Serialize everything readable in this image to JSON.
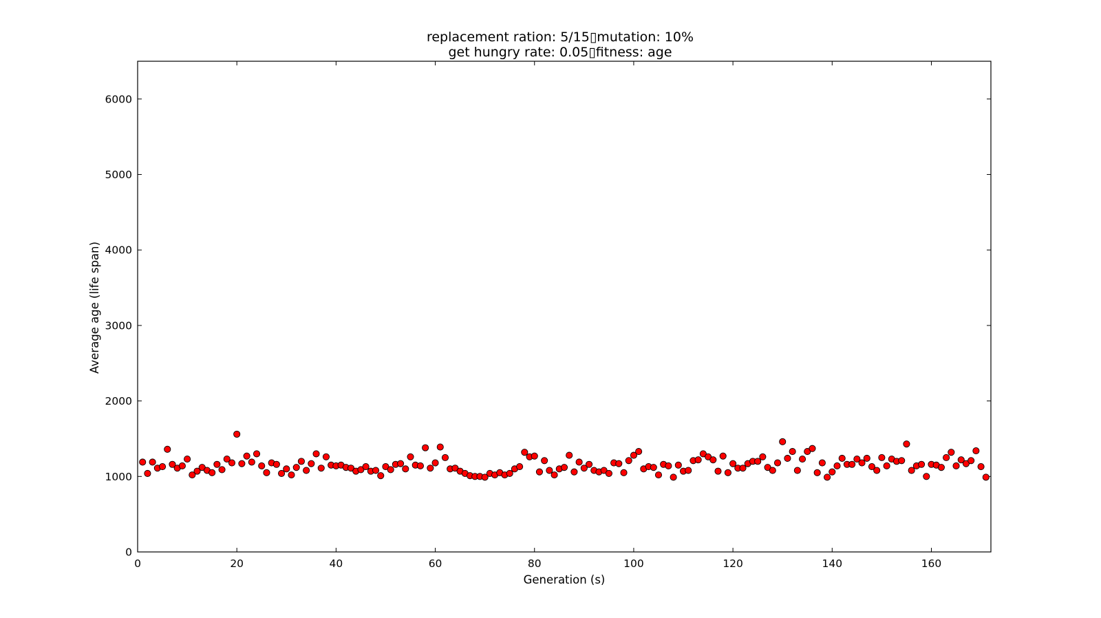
{
  "chart_data": {
    "type": "scatter",
    "title": "replacement ration: 5/15▯mutation: 10%",
    "subtitle": "get hungry rate: 0.05▯fitness: age",
    "xlabel": "Generation (s)",
    "ylabel": "Average age (life span)",
    "xlim": [
      0,
      172
    ],
    "ylim": [
      0,
      6500
    ],
    "xticks": [
      0,
      20,
      40,
      60,
      80,
      100,
      120,
      140,
      160
    ],
    "yticks": [
      0,
      1000,
      2000,
      3000,
      4000,
      5000,
      6000
    ],
    "grid": false,
    "legend": "none",
    "marker_color": "#ff0000",
    "marker_edge_color": "#000000",
    "x": [
      1,
      2,
      3,
      4,
      5,
      6,
      7,
      8,
      9,
      10,
      11,
      12,
      13,
      14,
      15,
      16,
      17,
      18,
      19,
      20,
      21,
      22,
      23,
      24,
      25,
      26,
      27,
      28,
      29,
      30,
      31,
      32,
      33,
      34,
      35,
      36,
      37,
      38,
      39,
      40,
      41,
      42,
      43,
      44,
      45,
      46,
      47,
      48,
      49,
      50,
      51,
      52,
      53,
      54,
      55,
      56,
      57,
      58,
      59,
      60,
      61,
      62,
      63,
      64,
      65,
      66,
      67,
      68,
      69,
      70,
      71,
      72,
      73,
      74,
      75,
      76,
      77,
      78,
      79,
      80,
      81,
      82,
      83,
      84,
      85,
      86,
      87,
      88,
      89,
      90,
      91,
      92,
      93,
      94,
      95,
      96,
      97,
      98,
      99,
      100,
      101,
      102,
      103,
      104,
      105,
      106,
      107,
      108,
      109,
      110,
      111,
      112,
      113,
      114,
      115,
      116,
      117,
      118,
      119,
      120,
      121,
      122,
      123,
      124,
      125,
      126,
      127,
      128,
      129,
      130,
      131,
      132,
      133,
      134,
      135,
      136,
      137,
      138,
      139,
      140,
      141,
      142,
      143,
      144,
      145,
      146,
      147,
      148,
      149,
      150,
      151,
      152,
      153,
      154,
      155,
      156,
      157,
      158,
      159,
      160,
      161,
      162,
      163,
      164,
      165,
      166,
      167,
      168,
      169,
      170,
      171
    ],
    "y": [
      1190,
      1040,
      1190,
      1110,
      1130,
      1360,
      1160,
      1110,
      1140,
      1230,
      1020,
      1070,
      1120,
      1080,
      1050,
      1160,
      1090,
      1230,
      1180,
      1560,
      1170,
      1270,
      1190,
      1300,
      1140,
      1050,
      1180,
      1160,
      1040,
      1100,
      1020,
      1120,
      1200,
      1080,
      1170,
      1300,
      1110,
      1260,
      1150,
      1140,
      1150,
      1120,
      1110,
      1070,
      1090,
      1130,
      1070,
      1080,
      1010,
      1130,
      1090,
      1160,
      1170,
      1100,
      1260,
      1150,
      1140,
      1380,
      1110,
      1180,
      1390,
      1250,
      1100,
      1110,
      1070,
      1040,
      1010,
      1000,
      1000,
      990,
      1040,
      1020,
      1050,
      1020,
      1040,
      1100,
      1130,
      1320,
      1260,
      1270,
      1060,
      1210,
      1080,
      1020,
      1100,
      1120,
      1280,
      1060,
      1190,
      1110,
      1160,
      1080,
      1060,
      1080,
      1040,
      1180,
      1170,
      1050,
      1210,
      1280,
      1330,
      1100,
      1130,
      1120,
      1020,
      1160,
      1140,
      990,
      1150,
      1070,
      1080,
      1210,
      1220,
      1300,
      1260,
      1220,
      1070,
      1270,
      1050,
      1170,
      1110,
      1110,
      1170,
      1200,
      1200,
      1260,
      1120,
      1080,
      1180,
      1460,
      1240,
      1330,
      1080,
      1230,
      1330,
      1370,
      1050,
      1180,
      990,
      1060,
      1140,
      1240,
      1160,
      1160,
      1230,
      1180,
      1240,
      1130,
      1080,
      1250,
      1140,
      1230,
      1200,
      1210,
      1430,
      1080,
      1140,
      1160,
      1000,
      1160,
      1150,
      1120,
      1250,
      1320,
      1140,
      1220,
      1170,
      1210,
      1340,
      1130,
      990
    ]
  }
}
